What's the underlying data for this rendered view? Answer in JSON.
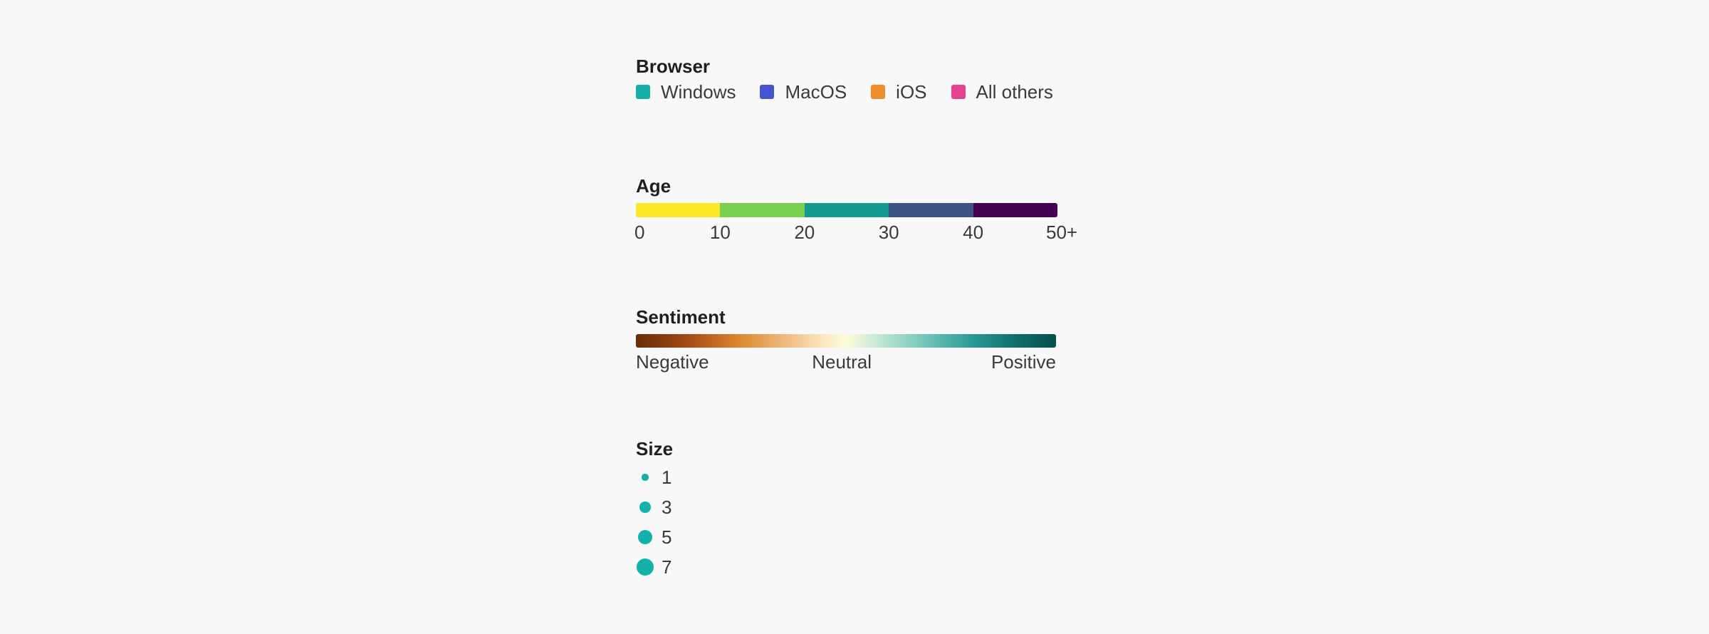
{
  "browser": {
    "title": "Browser",
    "items": [
      {
        "label": "Windows",
        "color": "#14b1ab"
      },
      {
        "label": "MacOS",
        "color": "#4453cf"
      },
      {
        "label": "iOS",
        "color": "#f28b2b"
      },
      {
        "label": "All others",
        "color": "#e4418f"
      }
    ]
  },
  "age": {
    "title": "Age",
    "segments": [
      {
        "color": "#fde725"
      },
      {
        "color": "#7ad151"
      },
      {
        "color": "#149b8f"
      },
      {
        "color": "#3c5388"
      },
      {
        "color": "#440154"
      }
    ],
    "ticks": [
      "0",
      "10",
      "20",
      "30",
      "40",
      "50+"
    ]
  },
  "sentiment": {
    "title": "Sentiment",
    "labels": {
      "left": "Negative",
      "mid": "Neutral",
      "right": "Positive"
    }
  },
  "size": {
    "title": "Size",
    "color": "#14b1ab",
    "items": [
      {
        "label": "1",
        "value": 1
      },
      {
        "label": "3",
        "value": 3
      },
      {
        "label": "5",
        "value": 5
      },
      {
        "label": "7",
        "value": 7
      }
    ]
  }
}
